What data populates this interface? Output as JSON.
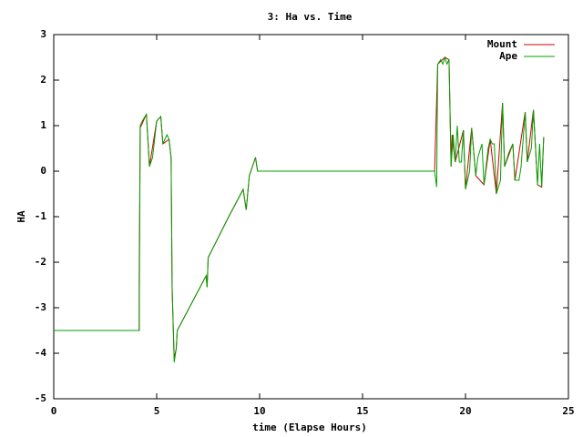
{
  "chart_data": {
    "type": "line",
    "title": "3: Ha vs. Time",
    "x_label": "time (Elapse Hours)",
    "y_label": "HA",
    "xlim": [
      0,
      25
    ],
    "xticks": [
      0,
      5,
      10,
      15,
      20,
      25
    ],
    "ylim": [
      -5,
      3
    ],
    "yticks": [
      -5,
      -4,
      -3,
      -2,
      -1,
      0,
      1,
      2,
      3
    ],
    "legend": "top-right",
    "series": [
      {
        "name": "Mount",
        "color": "#cc0000",
        "x": [
          0,
          4.15,
          4.15,
          4.2,
          4.5,
          4.65,
          5.0,
          5.2,
          5.3,
          5.6,
          5.7,
          5.75,
          5.85,
          5.95,
          6.0,
          7.4,
          7.45,
          7.5,
          8.5,
          9.2,
          9.35,
          9.5,
          9.8,
          9.9,
          18.5,
          18.65,
          19.0,
          19.2,
          19.25,
          19.3,
          19.35,
          19.5,
          19.9,
          20.0,
          20.3,
          20.5,
          20.9,
          21.2,
          21.5,
          21.8,
          21.9,
          22.3,
          22.4,
          22.9,
          23.0,
          23.3,
          23.5,
          23.7,
          23.8
        ],
        "values": [
          -3.5,
          -3.5,
          -2.4,
          0.95,
          1.25,
          0.1,
          1.1,
          1.2,
          0.6,
          0.7,
          0.3,
          -2.6,
          -4.1,
          -3.9,
          -3.5,
          -2.3,
          -2.55,
          -1.9,
          -1.0,
          -0.4,
          -0.85,
          -0.1,
          0.3,
          0.0,
          0.0,
          2.35,
          2.5,
          2.45,
          1.3,
          0.1,
          0.8,
          0.2,
          0.9,
          -0.4,
          0.95,
          -0.1,
          -0.3,
          0.7,
          -0.5,
          1.5,
          0.1,
          0.6,
          -0.2,
          1.3,
          0.2,
          1.35,
          -0.3,
          -0.35,
          0.75
        ]
      },
      {
        "name": "Ape",
        "color": "#00a000",
        "x": [
          0,
          4.15,
          4.2,
          4.3,
          4.5,
          4.6,
          4.65,
          4.8,
          5.0,
          5.2,
          5.3,
          5.5,
          5.6,
          5.7,
          5.75,
          5.85,
          5.95,
          6.0,
          7.4,
          7.45,
          7.5,
          8.5,
          9.2,
          9.35,
          9.5,
          9.8,
          9.9,
          18.5,
          18.6,
          18.65,
          18.8,
          18.9,
          19.0,
          19.1,
          19.2,
          19.3,
          19.4,
          19.5,
          19.6,
          19.7,
          19.8,
          19.9,
          20.0,
          20.2,
          20.3,
          20.5,
          20.6,
          20.8,
          20.9,
          21.1,
          21.2,
          21.3,
          21.4,
          21.5,
          21.7,
          21.8,
          21.9,
          22.1,
          22.3,
          22.4,
          22.6,
          22.7,
          22.9,
          23.0,
          23.2,
          23.3,
          23.5,
          23.6,
          23.7,
          23.8
        ],
        "values": [
          -3.5,
          -3.5,
          1.0,
          1.1,
          1.25,
          0.5,
          0.1,
          0.3,
          1.1,
          1.2,
          0.6,
          0.8,
          0.7,
          0.3,
          -2.5,
          -4.2,
          -3.9,
          -3.5,
          -2.3,
          -2.55,
          -1.9,
          -1.0,
          -0.4,
          -0.85,
          -0.1,
          0.3,
          0.0,
          0.0,
          -0.35,
          2.35,
          2.45,
          2.35,
          2.5,
          2.35,
          2.45,
          0.1,
          0.8,
          0.2,
          1.0,
          0.2,
          0.2,
          0.9,
          -0.4,
          0.0,
          0.95,
          -0.1,
          0.3,
          0.6,
          -0.3,
          0.5,
          0.7,
          0.6,
          0.6,
          -0.5,
          -0.2,
          1.5,
          0.1,
          0.4,
          0.6,
          -0.2,
          -0.2,
          0.1,
          1.3,
          0.2,
          0.5,
          1.35,
          -0.3,
          0.6,
          -0.35,
          0.75
        ]
      }
    ]
  }
}
